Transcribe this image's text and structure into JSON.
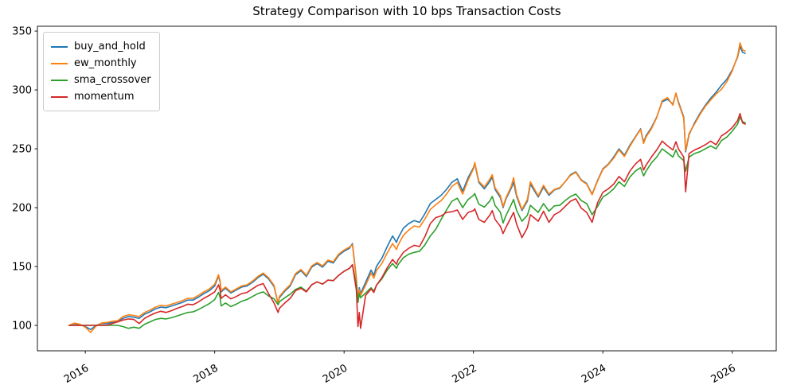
{
  "chart_data": {
    "type": "line",
    "title": "Strategy Comparison with 10 bps Transaction Costs",
    "xlabel": "",
    "ylabel": "",
    "grid": false,
    "legend_position": "upper-left",
    "xlim": [
      2015.26,
      2026.68
    ],
    "ylim": [
      78.4,
      354.1
    ],
    "xticks": [
      2016,
      2018,
      2020,
      2022,
      2024,
      2026
    ],
    "yticks": [
      100,
      150,
      200,
      250,
      300,
      350
    ],
    "x": [
      2015.75,
      2015.833,
      2015.917,
      2016.0,
      2016.083,
      2016.167,
      2016.25,
      2016.333,
      2016.417,
      2016.5,
      2016.583,
      2016.667,
      2016.75,
      2016.833,
      2016.917,
      2017.0,
      2017.083,
      2017.167,
      2017.25,
      2017.333,
      2017.417,
      2017.5,
      2017.583,
      2017.667,
      2017.75,
      2017.833,
      2017.917,
      2018.0,
      2018.06,
      2018.083,
      2018.1,
      2018.167,
      2018.25,
      2018.333,
      2018.417,
      2018.5,
      2018.583,
      2018.667,
      2018.75,
      2018.833,
      2018.917,
      2018.98,
      2019.0,
      2019.083,
      2019.167,
      2019.25,
      2019.333,
      2019.417,
      2019.5,
      2019.583,
      2019.667,
      2019.75,
      2019.833,
      2019.917,
      2020.0,
      2020.083,
      2020.13,
      2020.19,
      2020.215,
      2020.235,
      2020.255,
      2020.333,
      2020.417,
      2020.46,
      2020.5,
      2020.583,
      2020.667,
      2020.75,
      2020.81,
      2020.833,
      2020.917,
      2021.0,
      2021.083,
      2021.167,
      2021.25,
      2021.333,
      2021.417,
      2021.5,
      2021.583,
      2021.667,
      2021.75,
      2021.833,
      2021.917,
      2022.0,
      2022.02,
      2022.083,
      2022.167,
      2022.25,
      2022.29,
      2022.333,
      2022.417,
      2022.458,
      2022.5,
      2022.583,
      2022.62,
      2022.667,
      2022.75,
      2022.833,
      2022.88,
      2023.0,
      2023.083,
      2023.167,
      2023.25,
      2023.333,
      2023.417,
      2023.5,
      2023.583,
      2023.667,
      2023.75,
      2023.833,
      2023.917,
      2024.0,
      2024.083,
      2024.167,
      2024.25,
      2024.333,
      2024.417,
      2024.5,
      2024.583,
      2024.63,
      2024.667,
      2024.75,
      2024.833,
      2024.917,
      2025.0,
      2025.083,
      2025.13,
      2025.167,
      2025.25,
      2025.28,
      2025.333,
      2025.417,
      2025.5,
      2025.583,
      2025.667,
      2025.75,
      2025.833,
      2025.917,
      2026.0,
      2026.083,
      2026.12,
      2026.16,
      2026.2
    ],
    "series": [
      {
        "name": "buy_and_hold",
        "color": "#1f77b4",
        "values": [
          100,
          101.5,
          100.5,
          99,
          96.5,
          100,
          101.5,
          101.5,
          102.5,
          103,
          106,
          107.5,
          107,
          106,
          109.5,
          111.5,
          114,
          115.5,
          115,
          116.5,
          118,
          119.5,
          121.5,
          121.5,
          124,
          127,
          129.5,
          133.5,
          142,
          137,
          128.5,
          131.5,
          127.5,
          130,
          132.5,
          133.5,
          136.5,
          140.5,
          143.5,
          139.5,
          133,
          118.5,
          123.5,
          129,
          133.5,
          143,
          146.5,
          141.5,
          149.5,
          152.5,
          149.5,
          154.5,
          153,
          159.5,
          163,
          165.5,
          169.5,
          140,
          121,
          132,
          127,
          136.5,
          147,
          142.5,
          150,
          157,
          167,
          176,
          170.5,
          174,
          182.5,
          186.5,
          189,
          187.5,
          195,
          203.5,
          207,
          210.5,
          215.5,
          221.5,
          224.5,
          214,
          225.5,
          234,
          237.5,
          221.5,
          216,
          222,
          226,
          215.5,
          208.5,
          200,
          207,
          216.5,
          221.5,
          209.5,
          197.5,
          205.5,
          220,
          209,
          217.5,
          210.5,
          215,
          216.5,
          222,
          228,
          230.5,
          223.5,
          220.5,
          211.5,
          223,
          233,
          237,
          243,
          250,
          244.5,
          253,
          260,
          267,
          255.5,
          261,
          268,
          277,
          290,
          292,
          288,
          297,
          290,
          277,
          247.5,
          262,
          272,
          280,
          287,
          293,
          298,
          304,
          309,
          317,
          328,
          337,
          332,
          331
        ]
      },
      {
        "name": "ew_monthly",
        "color": "#ff7f0e",
        "values": [
          100,
          102,
          101,
          98.5,
          94,
          99.5,
          102,
          102.5,
          103.5,
          104,
          107.5,
          109,
          108.5,
          107.5,
          111,
          113,
          115.5,
          117,
          116.5,
          118,
          119.5,
          121,
          123,
          123,
          125.5,
          128.5,
          131,
          135,
          143,
          138,
          129.5,
          132.5,
          128.5,
          131,
          133.5,
          134.5,
          137.5,
          141.5,
          144.5,
          140.5,
          134,
          118,
          124.5,
          130,
          134.5,
          144,
          147.5,
          142.5,
          150.5,
          153.5,
          150.5,
          155.5,
          154,
          160.5,
          164,
          166.5,
          168.5,
          139,
          120,
          130.5,
          125.5,
          134,
          144.5,
          140,
          146.5,
          152.5,
          161.5,
          169.5,
          164.5,
          168,
          176.5,
          181,
          184.5,
          183.5,
          190.5,
          198.5,
          202.5,
          206,
          211.5,
          218,
          221.5,
          211.5,
          223.5,
          233,
          238.5,
          222.5,
          217.5,
          224,
          228,
          217,
          210,
          201,
          208,
          218,
          225.5,
          211,
          198.5,
          207,
          222,
          210,
          219,
          211.5,
          215.5,
          217,
          222,
          227.5,
          230,
          223,
          220,
          211,
          222.5,
          232.5,
          236.5,
          242,
          249,
          243.5,
          252,
          259.5,
          266.5,
          254.5,
          260,
          267,
          276.5,
          291,
          293.5,
          287,
          297.5,
          289,
          276,
          248.5,
          263,
          271,
          279,
          286,
          291.5,
          296.5,
          300.5,
          307,
          316,
          329,
          340,
          334,
          333
        ]
      },
      {
        "name": "sma_crossover",
        "color": "#2ca02c",
        "values": [
          100,
          100,
          100,
          100,
          100,
          100,
          100,
          100,
          100,
          100,
          99,
          97.5,
          98.5,
          97.5,
          101,
          103,
          105,
          106,
          105.5,
          106.5,
          108,
          109.5,
          111,
          111.5,
          113.5,
          116,
          118.5,
          122,
          128,
          124,
          116.5,
          119,
          116,
          118,
          120.5,
          122,
          124.5,
          127,
          128.5,
          125,
          122.5,
          117.5,
          120,
          123.5,
          126.5,
          130.5,
          132.5,
          129,
          134.5,
          137,
          135,
          138.5,
          138,
          142.5,
          146,
          148.5,
          151.5,
          134,
          119.5,
          127,
          123.5,
          127.5,
          132,
          129,
          134,
          139.5,
          147,
          152.5,
          148.5,
          151.5,
          157.5,
          160.5,
          162,
          163,
          168.5,
          176,
          181.5,
          190,
          198,
          205.5,
          208,
          200,
          207,
          210.5,
          212,
          203,
          200.5,
          205.5,
          209.5,
          202,
          196,
          187,
          193,
          202.5,
          207,
          197.5,
          188.5,
          193.5,
          202,
          196,
          203.5,
          197,
          201.5,
          202,
          206,
          209.5,
          211.5,
          206,
          203.5,
          194,
          201,
          209,
          212,
          216,
          222,
          218,
          226,
          231,
          234,
          227,
          231,
          238,
          243,
          250,
          246.5,
          243,
          249,
          244,
          240,
          231,
          243,
          246,
          247.5,
          250,
          252.5,
          250,
          257,
          260,
          265,
          271,
          277,
          273,
          272
        ]
      },
      {
        "name": "momentum",
        "color": "#d62728",
        "values": [
          100,
          100,
          100,
          100,
          100,
          100,
          100,
          100,
          101.5,
          103,
          104.5,
          105.5,
          105,
          101.5,
          106,
          108.5,
          110.5,
          112,
          111,
          112.5,
          114.5,
          116,
          118,
          117.5,
          120,
          123,
          125.5,
          128.5,
          134.5,
          130,
          123,
          126,
          122.5,
          124.5,
          127,
          128,
          131,
          134,
          135.5,
          127,
          119,
          111,
          114.5,
          119,
          123,
          129.5,
          131.5,
          128.5,
          134.5,
          137,
          135,
          138.5,
          138,
          142.5,
          146,
          148.5,
          151.5,
          130,
          99,
          111,
          97.5,
          125.5,
          131,
          128,
          134,
          140.5,
          149,
          156,
          152,
          155.5,
          162,
          165.5,
          168,
          167,
          175.5,
          186.5,
          191.5,
          193,
          196,
          196.5,
          198,
          190,
          196,
          197.5,
          199,
          190,
          187.5,
          193.5,
          197.5,
          190,
          184,
          178,
          183,
          192,
          196,
          186,
          174.5,
          183,
          194,
          188.5,
          197,
          187.5,
          194,
          196.5,
          201,
          205.5,
          207.5,
          199.5,
          196,
          187.5,
          204,
          213,
          216,
          220,
          226.5,
          222,
          231,
          237,
          241,
          232,
          236,
          243,
          249,
          256.5,
          252.5,
          249,
          256,
          250,
          243,
          213.5,
          246,
          249,
          251,
          253.5,
          256.5,
          253.5,
          261,
          264,
          268,
          274,
          280,
          272,
          271
        ]
      }
    ]
  }
}
